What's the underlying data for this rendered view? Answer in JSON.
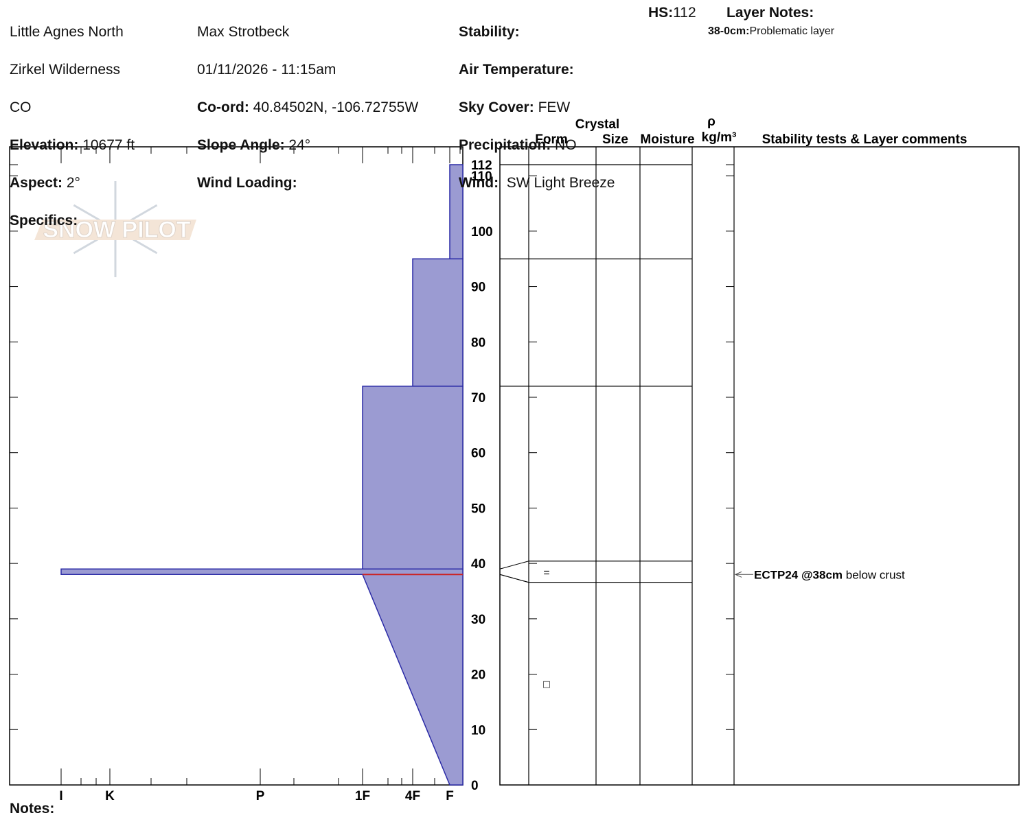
{
  "header": {
    "col1": {
      "lines": [
        "Little Agnes North",
        "Zirkel Wilderness",
        "CO"
      ],
      "fields": [
        {
          "label": "Elevation:",
          "value": "10677 ft"
        },
        {
          "label": "Aspect:",
          "value": "2°"
        },
        {
          "label": "Specifics:"
        }
      ]
    },
    "col2": {
      "lines": [
        "Max Strotbeck",
        "01/11/2026 - 11:15am"
      ],
      "fields": [
        {
          "label": "Co-ord:",
          "value": "40.84502N, -106.72755W"
        },
        {
          "label": "Slope Angle:",
          "value": "24°"
        },
        {
          "label": "Wind Loading:"
        }
      ]
    },
    "col3": {
      "fields": [
        {
          "label": "Stability:"
        },
        {
          "label": "Air Temperature:"
        },
        {
          "label": "Sky Cover:",
          "value": "FEW"
        },
        {
          "label": "Precipitation:",
          "value": "NO"
        },
        {
          "label": "Wind:",
          "value": "SW Light Breeze"
        }
      ]
    },
    "hs": {
      "label": "HS:",
      "value": "112"
    },
    "layer_notes": {
      "label": "Layer Notes:",
      "notes": [
        {
          "label": "38-0cm:",
          "text": "Problematic layer"
        }
      ]
    }
  },
  "logo": "SNOW PILOT",
  "notes_label": "Notes:",
  "chart_data": {
    "type": "snow-profile",
    "table_headers": {
      "crystal": "Crystal",
      "form": "Form",
      "size": "Size",
      "moisture": "Moisture",
      "rho": "ρ",
      "density_unit": "kg/m³",
      "comments": "Stability tests & Layer comments"
    },
    "hardness_scale": [
      "I",
      "K",
      "P",
      "1F",
      "4F",
      "F"
    ],
    "ylim": [
      0,
      112
    ],
    "yticks": [
      0,
      10,
      20,
      30,
      40,
      50,
      60,
      70,
      80,
      90,
      100,
      110,
      112
    ],
    "color": "#9b9bd2",
    "edge_color": "#2a2aa6",
    "layers": [
      {
        "top": 112,
        "bottom": 95,
        "hardness": "F"
      },
      {
        "top": 95,
        "bottom": 72,
        "hardness": "4F"
      },
      {
        "top": 72,
        "bottom": 39,
        "hardness": "1F"
      },
      {
        "top": 39,
        "bottom": 38,
        "hardness": "I",
        "form": "="
      },
      {
        "top": 38,
        "bottom": 0,
        "hardness": "1F",
        "hardness_bottom": "F",
        "form": "□"
      }
    ],
    "tests": [
      {
        "depth": 38,
        "label": "ECTP24 @38cm",
        "comment": "below crust",
        "color": "#cc2222"
      }
    ]
  }
}
